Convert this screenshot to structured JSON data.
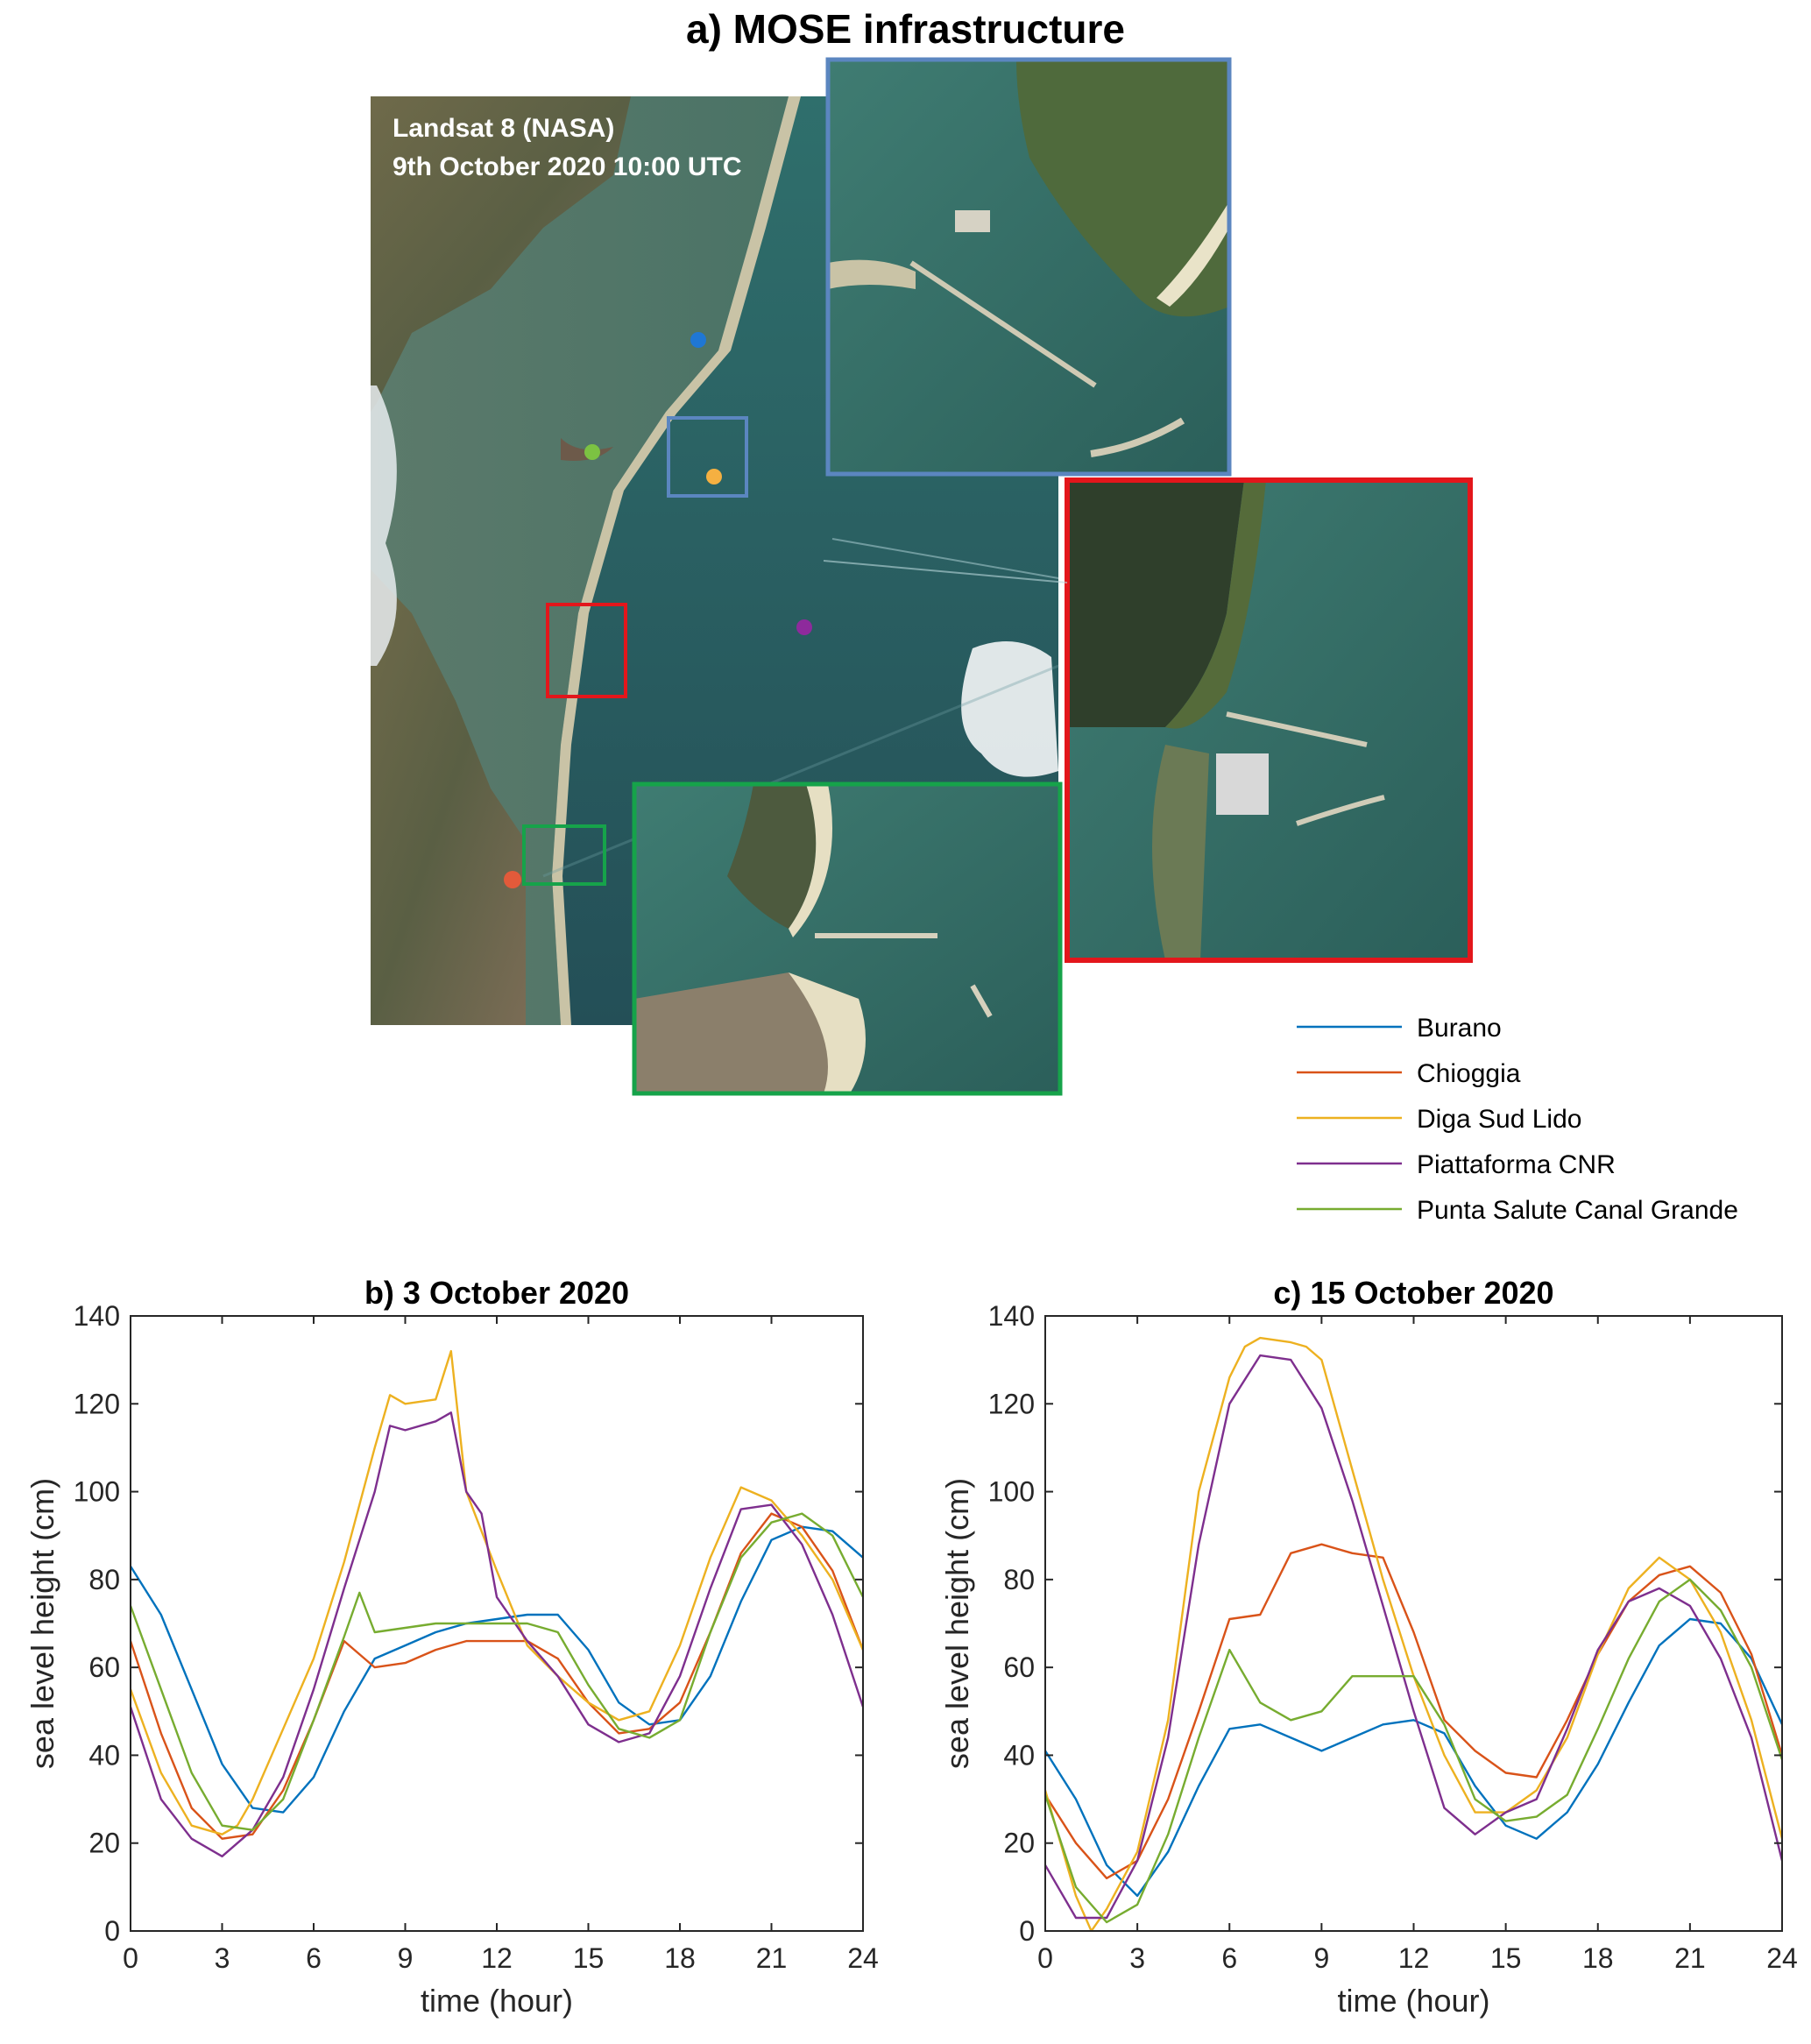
{
  "panel_a": {
    "title": "a) MOSE infrastructure",
    "caption_line1": "Landsat 8 (NASA)",
    "caption_line2": "9th October 2020 10:00 UTC",
    "box_colors": {
      "blue": "#5b86c0",
      "red": "#e3161b",
      "green": "#16a34a"
    }
  },
  "legend": [
    {
      "name": "Burano",
      "color": "#0072BD"
    },
    {
      "name": "Chioggia",
      "color": "#D95319"
    },
    {
      "name": "Diga Sud Lido",
      "color": "#EDB120"
    },
    {
      "name": "Piattaforma CNR",
      "color": "#7E2F8E"
    },
    {
      "name": "Punta Salute Canal Grande",
      "color": "#77AC30"
    }
  ],
  "chart_data": [
    {
      "type": "line",
      "title": "b)  3 October  2020",
      "xlabel": "time (hour)",
      "ylabel": "sea level height (cm)",
      "xlim": [
        0,
        24
      ],
      "ylim": [
        0,
        140
      ],
      "xticks": [
        0,
        3,
        6,
        9,
        12,
        15,
        18,
        21,
        24
      ],
      "yticks": [
        0,
        20,
        40,
        60,
        80,
        100,
        120,
        140
      ],
      "series": [
        {
          "name": "Burano",
          "color": "#0072BD",
          "x": [
            0,
            1,
            2,
            3,
            4,
            5,
            6,
            7,
            8,
            9,
            10,
            11,
            12,
            13,
            14,
            15,
            16,
            17,
            18,
            19,
            20,
            21,
            22,
            23,
            24
          ],
          "y": [
            83,
            72,
            55,
            38,
            28,
            27,
            35,
            50,
            62,
            65,
            68,
            70,
            71,
            72,
            72,
            64,
            52,
            47,
            48,
            58,
            75,
            89,
            92,
            91,
            85
          ]
        },
        {
          "name": "Chioggia",
          "color": "#D95319",
          "x": [
            0,
            1,
            2,
            3,
            4,
            5,
            6,
            7,
            8,
            9,
            10,
            11,
            12,
            13,
            14,
            15,
            16,
            17,
            18,
            19,
            20,
            21,
            22,
            23,
            24
          ],
          "y": [
            66,
            45,
            28,
            21,
            22,
            32,
            48,
            66,
            60,
            61,
            64,
            66,
            66,
            66,
            62,
            52,
            45,
            46,
            52,
            68,
            86,
            95,
            92,
            82,
            64
          ]
        },
        {
          "name": "Diga Sud Lido",
          "color": "#EDB120",
          "x": [
            0,
            1,
            2,
            3,
            3.5,
            4,
            5,
            6,
            7,
            8,
            8.5,
            9,
            10,
            10.5,
            11,
            12,
            13,
            14,
            15,
            16,
            17,
            18,
            19,
            20,
            21,
            22,
            23,
            24
          ],
          "y": [
            55,
            36,
            24,
            22,
            24,
            30,
            46,
            62,
            84,
            110,
            122,
            120,
            121,
            132,
            100,
            82,
            65,
            58,
            52,
            48,
            50,
            65,
            85,
            101,
            98,
            90,
            80,
            64
          ]
        },
        {
          "name": "Piattaforma CNR",
          "color": "#7E2F8E",
          "x": [
            0,
            1,
            2,
            3,
            4,
            5,
            6,
            7,
            8,
            8.5,
            9,
            10,
            10.5,
            11,
            11.5,
            12,
            13,
            14,
            15,
            16,
            17,
            18,
            19,
            20,
            21,
            22,
            23,
            24
          ],
          "y": [
            51,
            30,
            21,
            17,
            23,
            35,
            55,
            78,
            100,
            115,
            114,
            116,
            118,
            100,
            95,
            76,
            66,
            58,
            47,
            43,
            45,
            58,
            78,
            96,
            97,
            88,
            72,
            51
          ]
        },
        {
          "name": "Punta Salute Canal Grande",
          "color": "#77AC30",
          "x": [
            0,
            1,
            2,
            3,
            4,
            5,
            6,
            7,
            7.5,
            8,
            9,
            10,
            11,
            12,
            13,
            14,
            15,
            16,
            17,
            18,
            19,
            20,
            21,
            22,
            23,
            24
          ],
          "y": [
            74,
            55,
            36,
            24,
            23,
            30,
            48,
            67,
            77,
            68,
            69,
            70,
            70,
            70,
            70,
            68,
            56,
            46,
            44,
            48,
            68,
            85,
            93,
            95,
            90,
            76
          ]
        }
      ]
    },
    {
      "type": "line",
      "title": "c)  15 October 2020",
      "xlabel": "time (hour)",
      "ylabel": "sea level height (cm)",
      "xlim": [
        0,
        24
      ],
      "ylim": [
        0,
        140
      ],
      "xticks": [
        0,
        3,
        6,
        9,
        12,
        15,
        18,
        21,
        24
      ],
      "yticks": [
        0,
        20,
        40,
        60,
        80,
        100,
        120,
        140
      ],
      "series": [
        {
          "name": "Burano",
          "color": "#0072BD",
          "x": [
            0,
            1,
            2,
            3,
            4,
            5,
            6,
            7,
            8,
            9,
            10,
            11,
            12,
            13,
            14,
            15,
            16,
            17,
            18,
            19,
            20,
            21,
            22,
            23,
            24
          ],
          "y": [
            41,
            30,
            15,
            8,
            18,
            33,
            46,
            47,
            44,
            41,
            44,
            47,
            48,
            45,
            33,
            24,
            21,
            27,
            38,
            52,
            65,
            71,
            70,
            62,
            47
          ]
        },
        {
          "name": "Chioggia",
          "color": "#D95319",
          "x": [
            0,
            1,
            2,
            3,
            4,
            5,
            6,
            7,
            8,
            9,
            10,
            11,
            12,
            13,
            14,
            15,
            16,
            17,
            18,
            19,
            20,
            21,
            22,
            23,
            24
          ],
          "y": [
            31,
            20,
            12,
            16,
            30,
            50,
            71,
            72,
            86,
            88,
            86,
            85,
            68,
            48,
            41,
            36,
            35,
            48,
            63,
            75,
            81,
            83,
            77,
            63,
            40
          ]
        },
        {
          "name": "Diga Sud Lido",
          "color": "#EDB120",
          "x": [
            0,
            1,
            1.5,
            2,
            3,
            4,
            5,
            6,
            6.5,
            7,
            8,
            8.5,
            9,
            10,
            11,
            12,
            13,
            14,
            15,
            16,
            17,
            18,
            19,
            20,
            21,
            22,
            23,
            24
          ],
          "y": [
            32,
            8,
            0,
            5,
            18,
            48,
            100,
            126,
            133,
            135,
            134,
            133,
            130,
            105,
            80,
            58,
            40,
            27,
            27,
            32,
            44,
            63,
            78,
            85,
            80,
            68,
            48,
            21
          ]
        },
        {
          "name": "Piattaforma CNR",
          "color": "#7E2F8E",
          "x": [
            0,
            1,
            2,
            3,
            4,
            5,
            6,
            7,
            8,
            9,
            10,
            11,
            12,
            13,
            14,
            15,
            16,
            17,
            18,
            19,
            20,
            21,
            22,
            23,
            24
          ],
          "y": [
            15,
            3,
            3,
            16,
            44,
            88,
            120,
            131,
            130,
            119,
            98,
            74,
            50,
            28,
            22,
            27,
            30,
            46,
            64,
            75,
            78,
            74,
            62,
            44,
            16
          ]
        },
        {
          "name": "Punta Salute Canal Grande",
          "color": "#77AC30",
          "x": [
            0,
            1,
            2,
            3,
            4,
            5,
            6,
            7,
            8,
            9,
            10,
            11,
            12,
            13,
            14,
            15,
            16,
            17,
            18,
            19,
            20,
            21,
            22,
            23,
            24
          ],
          "y": [
            31,
            10,
            2,
            6,
            22,
            44,
            64,
            52,
            48,
            50,
            58,
            58,
            58,
            47,
            30,
            25,
            26,
            31,
            46,
            62,
            75,
            80,
            73,
            60,
            39
          ]
        }
      ]
    }
  ]
}
